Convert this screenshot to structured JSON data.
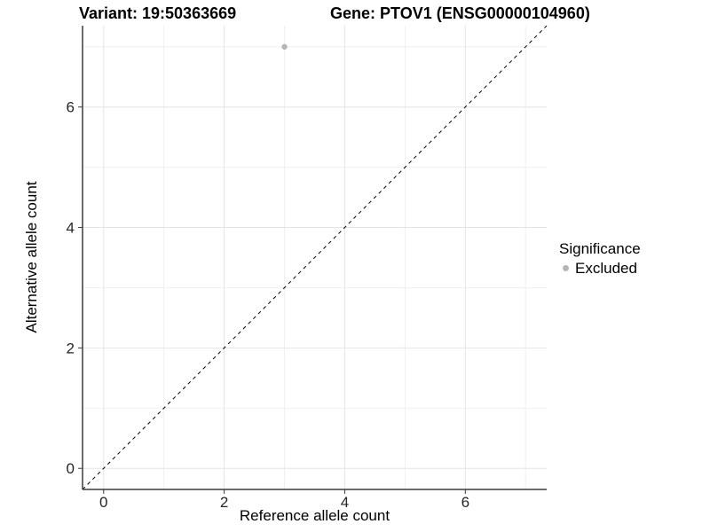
{
  "title": {
    "variant": "Variant: 19:50363669",
    "gene": "Gene: PTOV1 (ENSG00000104960)"
  },
  "legend": {
    "title": "Significance",
    "items": [
      {
        "label": "Excluded",
        "color": "#b5b5b5"
      }
    ]
  },
  "chart_data": {
    "type": "scatter",
    "title": "Variant: 19:50363669   Gene: PTOV1 (ENSG00000104960)",
    "xlabel": "Reference allele count",
    "ylabel": "Alternative allele count",
    "xlim": [
      -0.35,
      7.35
    ],
    "ylim": [
      -0.35,
      7.35
    ],
    "x_ticks": [
      0,
      2,
      4,
      6
    ],
    "y_ticks": [
      0,
      2,
      4,
      6
    ],
    "x_minor_ticks": [
      1,
      3,
      5,
      7
    ],
    "y_minor_ticks": [
      1,
      3,
      5,
      7
    ],
    "grid": true,
    "legend_position": "right",
    "series": [
      {
        "name": "Excluded",
        "color": "#b5b5b5",
        "points": [
          {
            "x": 3,
            "y": 7
          }
        ]
      }
    ],
    "reference_line": {
      "slope": 1,
      "intercept": 0,
      "style": "dashed",
      "color": "#000000"
    }
  },
  "colors": {
    "point_excluded": "#b5b5b5",
    "axis_line": "#3c3c3c",
    "tick_label": "#262626",
    "grid_major": "#e4e4e4",
    "grid_minor": "#f0f0f0",
    "background": "#ffffff"
  }
}
